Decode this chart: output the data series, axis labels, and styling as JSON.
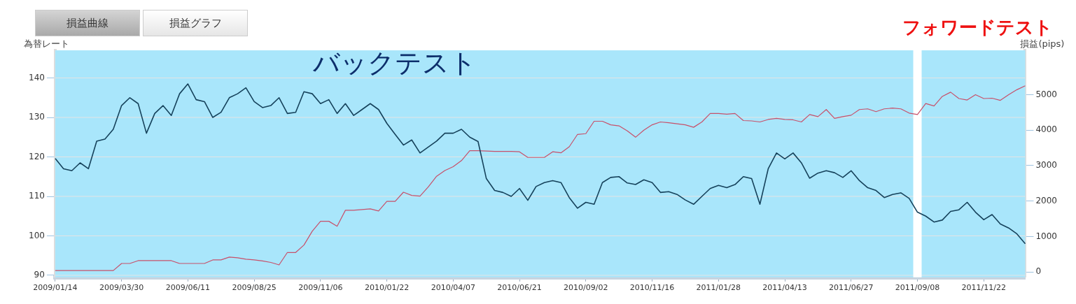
{
  "chart_data": {
    "type": "line",
    "ylabel": "為替レート",
    "y2label": "損益(pips)",
    "annotations": [
      "損益曲線",
      "損益グラフ",
      "バックテスト",
      "フォワードテスト"
    ],
    "categories": [
      "2009/01/14",
      null,
      null,
      null,
      null,
      null,
      null,
      null,
      "2009/03/30",
      null,
      null,
      null,
      null,
      null,
      null,
      null,
      "2009/06/11",
      null,
      null,
      null,
      null,
      null,
      null,
      null,
      "2009/08/25",
      null,
      null,
      null,
      null,
      null,
      null,
      null,
      "2009/11/06",
      null,
      null,
      null,
      null,
      null,
      null,
      null,
      "2010/01/22",
      null,
      null,
      null,
      null,
      null,
      null,
      null,
      "2010/04/07",
      null,
      null,
      null,
      null,
      null,
      null,
      null,
      "2010/06/21",
      null,
      null,
      null,
      null,
      null,
      null,
      null,
      "2010/09/02",
      null,
      null,
      null,
      null,
      null,
      null,
      null,
      "2010/11/16",
      null,
      null,
      null,
      null,
      null,
      null,
      null,
      "2011/01/28",
      null,
      null,
      null,
      null,
      null,
      null,
      null,
      "2011/04/13",
      null,
      null,
      null,
      null,
      null,
      null,
      null,
      "2011/06/27",
      null,
      null,
      null,
      null,
      null,
      null,
      null,
      "2011/09/08",
      null,
      null,
      null,
      null,
      null,
      null,
      null,
      "2011/11/22",
      null,
      null,
      null,
      null,
      null
    ],
    "series": [
      {
        "color": "#16425b",
        "values": [
          119.6,
          117,
          116.5,
          118.5,
          117,
          124,
          124.5,
          127,
          133,
          135,
          133.5,
          126,
          131,
          133,
          130.5,
          136,
          138.5,
          134.5,
          134,
          130,
          131.3,
          135,
          136,
          137.5,
          134,
          132.5,
          133,
          135,
          131,
          131.3,
          136.5,
          136,
          133.5,
          134.5,
          131,
          133.5,
          130.5,
          132,
          133.5,
          132,
          128.5,
          125.7,
          123,
          124.3,
          121,
          122.5,
          124,
          126,
          126,
          127,
          125,
          123.9,
          114.5,
          111.5,
          111,
          110,
          112,
          109,
          112.5,
          113.5,
          114,
          113.5,
          109.7,
          107,
          108.5,
          108,
          113.5,
          114.8,
          115,
          113.4,
          113,
          114.2,
          113.5,
          111,
          111.2,
          110.5,
          109.1,
          108,
          110,
          112,
          112.8,
          112.2,
          113,
          115,
          114.5,
          108,
          117,
          121,
          119.5,
          121,
          118.5,
          114.6,
          115.9,
          116.5,
          116,
          114.8,
          116.5,
          114,
          112.2,
          111.5,
          109.7,
          110.5,
          110.9,
          109.5,
          106,
          105,
          103.5,
          104,
          106.2,
          106.6,
          108.5,
          106,
          104.1,
          105.4,
          103,
          102,
          100.5,
          98
        ]
      },
      {
        "color": "#c8506a",
        "axis": "y2",
        "values": [
          40,
          40,
          40,
          40,
          40,
          40,
          40,
          40,
          240,
          240,
          320,
          320,
          320,
          320,
          320,
          240,
          240,
          240,
          240,
          340,
          340,
          420,
          400,
          360,
          340,
          310,
          270,
          200,
          550,
          550,
          760,
          1150,
          1430,
          1430,
          1290,
          1740,
          1740,
          1760,
          1780,
          1720,
          1990,
          1990,
          2250,
          2160,
          2140,
          2400,
          2700,
          2860,
          2970,
          3140,
          3420,
          3420,
          3410,
          3400,
          3400,
          3400,
          3390,
          3230,
          3230,
          3230,
          3390,
          3360,
          3530,
          3880,
          3900,
          4250,
          4250,
          4150,
          4120,
          3980,
          3800,
          4000,
          4150,
          4230,
          4210,
          4180,
          4150,
          4080,
          4230,
          4470,
          4470,
          4450,
          4470,
          4270,
          4260,
          4230,
          4300,
          4330,
          4300,
          4290,
          4230,
          4440,
          4380,
          4580,
          4330,
          4380,
          4420,
          4580,
          4600,
          4520,
          4600,
          4620,
          4600,
          4480,
          4440,
          4750,
          4680,
          4950,
          5070,
          4890,
          4850,
          5000,
          4890,
          4900,
          4840,
          5000,
          5140,
          5250
        ]
      }
    ],
    "ylim": [
      89.5,
      147
    ],
    "yticks": [
      90,
      100,
      110,
      120,
      130,
      140
    ],
    "y2lim": [
      -150,
      6250
    ],
    "y2ticks": [
      0,
      1000,
      2000,
      3000,
      4000,
      5000
    ],
    "ref_lines": [
      {
        "axis": "x",
        "value": "2011/09/08",
        "color": "#ffffff"
      }
    ],
    "grid": "y",
    "legend": false,
    "marker": "none",
    "line_style": "solid"
  }
}
